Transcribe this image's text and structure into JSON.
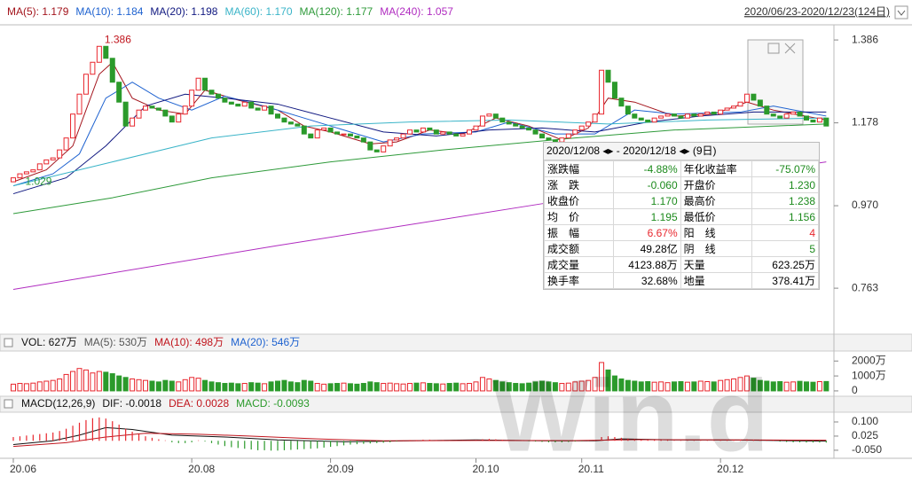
{
  "legend": {
    "date_range": "2020/06/23-2020/12/23(124日)"
  },
  "chart_data": [
    {
      "type": "candlestick",
      "categories": [
        "20.06",
        null,
        null,
        null,
        null,
        null,
        null,
        null,
        null,
        null,
        null,
        null,
        null,
        null,
        null,
        null,
        null,
        null,
        null,
        null,
        null,
        null,
        null,
        null,
        null,
        null,
        null,
        "20.08",
        null,
        null,
        null,
        null,
        null,
        null,
        null,
        null,
        null,
        null,
        null,
        null,
        null,
        null,
        null,
        null,
        null,
        null,
        null,
        null,
        "20.09",
        null,
        null,
        null,
        null,
        null,
        null,
        null,
        null,
        null,
        null,
        null,
        null,
        null,
        null,
        null,
        null,
        null,
        null,
        null,
        null,
        null,
        "20.10",
        null,
        null,
        null,
        null,
        null,
        null,
        null,
        null,
        null,
        null,
        null,
        null,
        null,
        null,
        null,
        "20.11",
        null,
        null,
        null,
        null,
        null,
        null,
        null,
        null,
        null,
        null,
        null,
        null,
        null,
        null,
        null,
        null,
        null,
        null,
        null,
        null,
        "20.12",
        null,
        null,
        null,
        null,
        null,
        null,
        null,
        null,
        null,
        null,
        null,
        null,
        null,
        null,
        null,
        null
      ],
      "open": [
        1.03,
        1.04,
        1.05,
        1.055,
        1.06,
        1.075,
        1.085,
        1.09,
        1.11,
        1.14,
        1.2,
        1.25,
        1.3,
        1.33,
        1.37,
        1.34,
        1.28,
        1.23,
        1.17,
        1.19,
        1.21,
        1.22,
        1.215,
        1.21,
        1.195,
        1.18,
        1.2,
        1.22,
        1.26,
        1.29,
        1.26,
        1.25,
        1.24,
        1.23,
        1.225,
        1.22,
        1.23,
        1.215,
        1.21,
        1.22,
        1.2,
        1.19,
        1.18,
        1.175,
        1.17,
        1.15,
        1.14,
        1.16,
        1.165,
        1.155,
        1.15,
        1.15,
        1.145,
        1.14,
        1.13,
        1.11,
        1.105,
        1.12,
        1.135,
        1.14,
        1.15,
        1.16,
        1.155,
        1.165,
        1.16,
        1.15,
        1.155,
        1.15,
        1.145,
        1.15,
        1.16,
        1.17,
        1.195,
        1.2,
        1.19,
        1.18,
        1.175,
        1.17,
        1.165,
        1.16,
        1.15,
        1.14,
        1.135,
        1.13,
        1.14,
        1.15,
        1.16,
        1.17,
        1.18,
        1.2,
        1.31,
        1.28,
        1.24,
        1.22,
        1.2,
        1.19,
        1.185,
        1.18,
        1.19,
        1.195,
        1.2,
        1.195,
        1.19,
        1.2,
        1.195,
        1.2,
        1.205,
        1.2,
        1.21,
        1.215,
        1.22,
        1.23,
        1.25,
        1.235,
        1.22,
        1.2,
        1.195,
        1.19,
        1.2,
        1.205,
        1.195,
        1.185,
        1.18,
        1.19
      ],
      "close": [
        1.04,
        1.05,
        1.055,
        1.06,
        1.075,
        1.085,
        1.09,
        1.11,
        1.14,
        1.2,
        1.25,
        1.3,
        1.33,
        1.37,
        1.34,
        1.28,
        1.23,
        1.17,
        1.19,
        1.21,
        1.22,
        1.215,
        1.21,
        1.195,
        1.18,
        1.2,
        1.22,
        1.26,
        1.29,
        1.26,
        1.25,
        1.24,
        1.23,
        1.225,
        1.22,
        1.23,
        1.215,
        1.21,
        1.22,
        1.2,
        1.19,
        1.18,
        1.175,
        1.17,
        1.15,
        1.14,
        1.16,
        1.165,
        1.155,
        1.15,
        1.15,
        1.145,
        1.14,
        1.13,
        1.11,
        1.105,
        1.12,
        1.135,
        1.14,
        1.15,
        1.16,
        1.155,
        1.165,
        1.16,
        1.15,
        1.155,
        1.15,
        1.145,
        1.15,
        1.16,
        1.17,
        1.195,
        1.2,
        1.19,
        1.18,
        1.175,
        1.17,
        1.165,
        1.16,
        1.15,
        1.14,
        1.135,
        1.13,
        1.14,
        1.15,
        1.16,
        1.17,
        1.18,
        1.2,
        1.31,
        1.28,
        1.24,
        1.22,
        1.2,
        1.19,
        1.185,
        1.18,
        1.19,
        1.195,
        1.2,
        1.195,
        1.19,
        1.2,
        1.195,
        1.2,
        1.205,
        1.2,
        1.21,
        1.215,
        1.22,
        1.23,
        1.25,
        1.235,
        1.22,
        1.2,
        1.195,
        1.19,
        1.2,
        1.205,
        1.195,
        1.185,
        1.18,
        1.19,
        1.17
      ],
      "up_color": "#e8262d",
      "down_color": "#2b9a2b",
      "ylim": [
        0.652,
        1.424
      ],
      "yticks": [
        1.386,
        1.178,
        {
          "value": 0.97,
          "label": "0.970"
        },
        0.763
      ],
      "series": [
        {
          "name": "MA(5): 1.179",
          "color": "#a3141c",
          "x": [
            0,
            5,
            9,
            13,
            15,
            18,
            22,
            26,
            29,
            34,
            40,
            44,
            48,
            54,
            58,
            63,
            68,
            73,
            78,
            83,
            87,
            90,
            94,
            100,
            106,
            111,
            115,
            123
          ],
          "values": [
            1.03,
            1.06,
            1.12,
            1.3,
            1.33,
            1.24,
            1.21,
            1.2,
            1.26,
            1.235,
            1.21,
            1.17,
            1.155,
            1.125,
            1.13,
            1.16,
            1.15,
            1.19,
            1.17,
            1.135,
            1.165,
            1.24,
            1.23,
            1.195,
            1.2,
            1.23,
            1.21,
            1.185
          ]
        },
        {
          "name": "MA(10): 1.184",
          "color": "#1e62d0",
          "x": [
            0,
            6,
            10,
            14,
            18,
            22,
            27,
            32,
            38,
            44,
            50,
            56,
            62,
            70,
            75,
            82,
            88,
            94,
            100,
            110,
            115,
            123
          ],
          "values": [
            1.02,
            1.05,
            1.1,
            1.24,
            1.28,
            1.24,
            1.21,
            1.245,
            1.22,
            1.19,
            1.16,
            1.13,
            1.15,
            1.155,
            1.18,
            1.15,
            1.15,
            1.21,
            1.2,
            1.205,
            1.22,
            1.195
          ]
        },
        {
          "name": "MA(20): 1.198",
          "color": "#101880",
          "x": [
            0,
            8,
            14,
            20,
            26,
            32,
            40,
            48,
            56,
            64,
            72,
            80,
            88,
            96,
            104,
            112,
            123
          ],
          "values": [
            1.0,
            1.04,
            1.12,
            1.22,
            1.25,
            1.24,
            1.225,
            1.19,
            1.155,
            1.145,
            1.16,
            1.165,
            1.155,
            1.18,
            1.195,
            1.205,
            1.205
          ]
        },
        {
          "name": "MA(60): 1.170",
          "color": "#3ab4c8",
          "x": [
            0,
            15,
            30,
            45,
            60,
            75,
            90,
            105,
            123
          ],
          "values": [
            1.02,
            1.08,
            1.14,
            1.17,
            1.18,
            1.185,
            1.175,
            1.185,
            1.19
          ]
        },
        {
          "name": "MA(120): 1.177",
          "color": "#2e9a3a",
          "x": [
            0,
            15,
            30,
            48,
            65,
            85,
            100,
            123
          ],
          "values": [
            0.95,
            0.99,
            1.04,
            1.08,
            1.11,
            1.14,
            1.16,
            1.175
          ]
        },
        {
          "name": "MA(240): 1.057",
          "color": "#b02cc0",
          "x": [
            0,
            40,
            80,
            123
          ],
          "values": [
            0.76,
            0.87,
            0.975,
            1.08
          ]
        }
      ],
      "annotations": [
        {
          "text": "1.386",
          "x": 13,
          "y": 1.386,
          "color": "#c0141c"
        },
        {
          "text": "1.029",
          "x": 1,
          "y": 1.029,
          "color": "#2e9a3a"
        }
      ]
    },
    {
      "type": "bar",
      "title": "VOL: 627万",
      "legend": [
        {
          "label": "MA(5): 530万",
          "color": "#555555"
        },
        {
          "label": "MA(10): 498万",
          "color": "#c0141c"
        },
        {
          "label": "MA(20): 546万",
          "color": "#1e62d0"
        }
      ],
      "values": [
        450,
        500,
        480,
        520,
        600,
        650,
        700,
        800,
        1100,
        1300,
        1500,
        1400,
        1200,
        1300,
        1250,
        1150,
        1000,
        900,
        800,
        750,
        700,
        650,
        600,
        700,
        650,
        600,
        750,
        900,
        850,
        700,
        600,
        550,
        500,
        520,
        480,
        500,
        550,
        520,
        480,
        600,
        650,
        700,
        600,
        550,
        700,
        650,
        500,
        450,
        480,
        500,
        520,
        480,
        450,
        500,
        600,
        550,
        500,
        520,
        480,
        460,
        500,
        520,
        540,
        500,
        480,
        460,
        500,
        520,
        480,
        500,
        600,
        900,
        800,
        700,
        600,
        550,
        500,
        480,
        520,
        600,
        650,
        600,
        550,
        500,
        520,
        600,
        650,
        700,
        900,
        1900,
        1400,
        1000,
        800,
        700,
        650,
        600,
        620,
        580,
        600,
        550,
        600,
        620,
        580,
        600,
        650,
        620,
        600,
        700,
        750,
        800,
        900,
        1000,
        850,
        700,
        650,
        600,
        620,
        580,
        600,
        640,
        600,
        580,
        620,
        627
      ],
      "ylim": [
        -300,
        2550
      ],
      "yticks": [
        {
          "value": 2000,
          "label": "2000万"
        },
        {
          "value": 1000,
          "label": "1000万"
        },
        0
      ]
    },
    {
      "type": "bar",
      "title": "MACD(12,26,9)",
      "name": "MACD: -0.0093",
      "up_color": "#e8262d",
      "down_color": "#2b9a2b",
      "values": [
        0.02,
        0.024,
        0.028,
        0.032,
        0.036,
        0.04,
        0.044,
        0.052,
        0.064,
        0.08,
        0.096,
        0.11,
        0.12,
        0.124,
        0.118,
        0.104,
        0.086,
        0.064,
        0.048,
        0.036,
        0.024,
        0.016,
        0.008,
        0.0,
        -0.008,
        -0.012,
        -0.012,
        -0.008,
        0.0,
        -0.004,
        -0.012,
        -0.02,
        -0.028,
        -0.034,
        -0.038,
        -0.042,
        -0.046,
        -0.05,
        -0.05,
        -0.052,
        -0.052,
        -0.05,
        -0.048,
        -0.046,
        -0.044,
        -0.042,
        -0.04,
        -0.036,
        -0.032,
        -0.028,
        -0.024,
        -0.02,
        -0.018,
        -0.016,
        -0.014,
        -0.012,
        -0.01,
        -0.008,
        -0.004,
        0.0,
        0.004,
        0.004,
        0.006,
        0.006,
        0.004,
        0.004,
        0.002,
        0.0,
        0.0,
        0.002,
        0.004,
        0.008,
        0.01,
        0.008,
        0.006,
        0.004,
        0.002,
        0.0,
        -0.002,
        -0.004,
        -0.006,
        -0.008,
        -0.008,
        -0.008,
        -0.006,
        -0.004,
        -0.002,
        0.0,
        0.004,
        0.02,
        0.024,
        0.02,
        0.016,
        0.012,
        0.01,
        0.008,
        0.006,
        0.004,
        0.004,
        0.004,
        0.002,
        0.002,
        0.002,
        0.002,
        0.002,
        0.002,
        0.002,
        0.004,
        0.004,
        0.004,
        0.006,
        0.008,
        0.006,
        0.004,
        0.002,
        0.0,
        -0.004,
        -0.006,
        -0.008,
        -0.008,
        -0.009,
        -0.009,
        -0.009,
        -0.0093
      ],
      "series": [
        {
          "name": "DIF: -0.0018",
          "color": "#111111",
          "x": [
            0,
            6,
            10,
            14,
            18,
            24,
            32,
            40,
            50,
            60,
            70,
            80,
            88,
            92,
            100,
            110,
            123
          ],
          "values": [
            -0.02,
            0.0,
            0.03,
            0.07,
            0.06,
            0.03,
            0.02,
            0.005,
            -0.005,
            0.0,
            0.005,
            0.0,
            0.0,
            0.01,
            0.005,
            0.004,
            -0.0018
          ]
        },
        {
          "name": "DEA: 0.0028",
          "color": "#c0141c",
          "x": [
            0,
            8,
            14,
            20,
            28,
            36,
            46,
            56,
            70,
            84,
            94,
            110,
            123
          ],
          "values": [
            -0.03,
            -0.01,
            0.02,
            0.04,
            0.035,
            0.025,
            0.01,
            0.0,
            0.002,
            0.001,
            0.006,
            0.005,
            0.0028
          ]
        }
      ],
      "ylim": [
        -0.088,
        0.147
      ],
      "yticks": [
        {
          "value": 0.1,
          "label": "0.100"
        },
        0.025,
        {
          "value": -0.05,
          "label": "-0.050"
        }
      ]
    }
  ],
  "info_box": {
    "start": "2020/12/08",
    "end": "2020/12/18",
    "days": "(9日)",
    "rows": [
      [
        "涨跌幅",
        "-4.88%",
        "年化收益率",
        "-75.07%"
      ],
      [
        "涨　跌",
        "-0.060",
        "开盘价",
        "1.230"
      ],
      [
        "收盘价",
        "1.170",
        "最高价",
        "1.238"
      ],
      [
        "均　价",
        "1.195",
        "最低价",
        "1.156"
      ],
      [
        "振　幅",
        "6.67%",
        "阳　线",
        "4"
      ],
      [
        "成交额",
        "49.28亿",
        "阴　线",
        "5"
      ],
      [
        "成交量",
        "4123.88万",
        "天量",
        "623.25万"
      ],
      [
        "换手率",
        "32.68%",
        "地量",
        "378.41万"
      ]
    ]
  },
  "watermark": "Win.d"
}
